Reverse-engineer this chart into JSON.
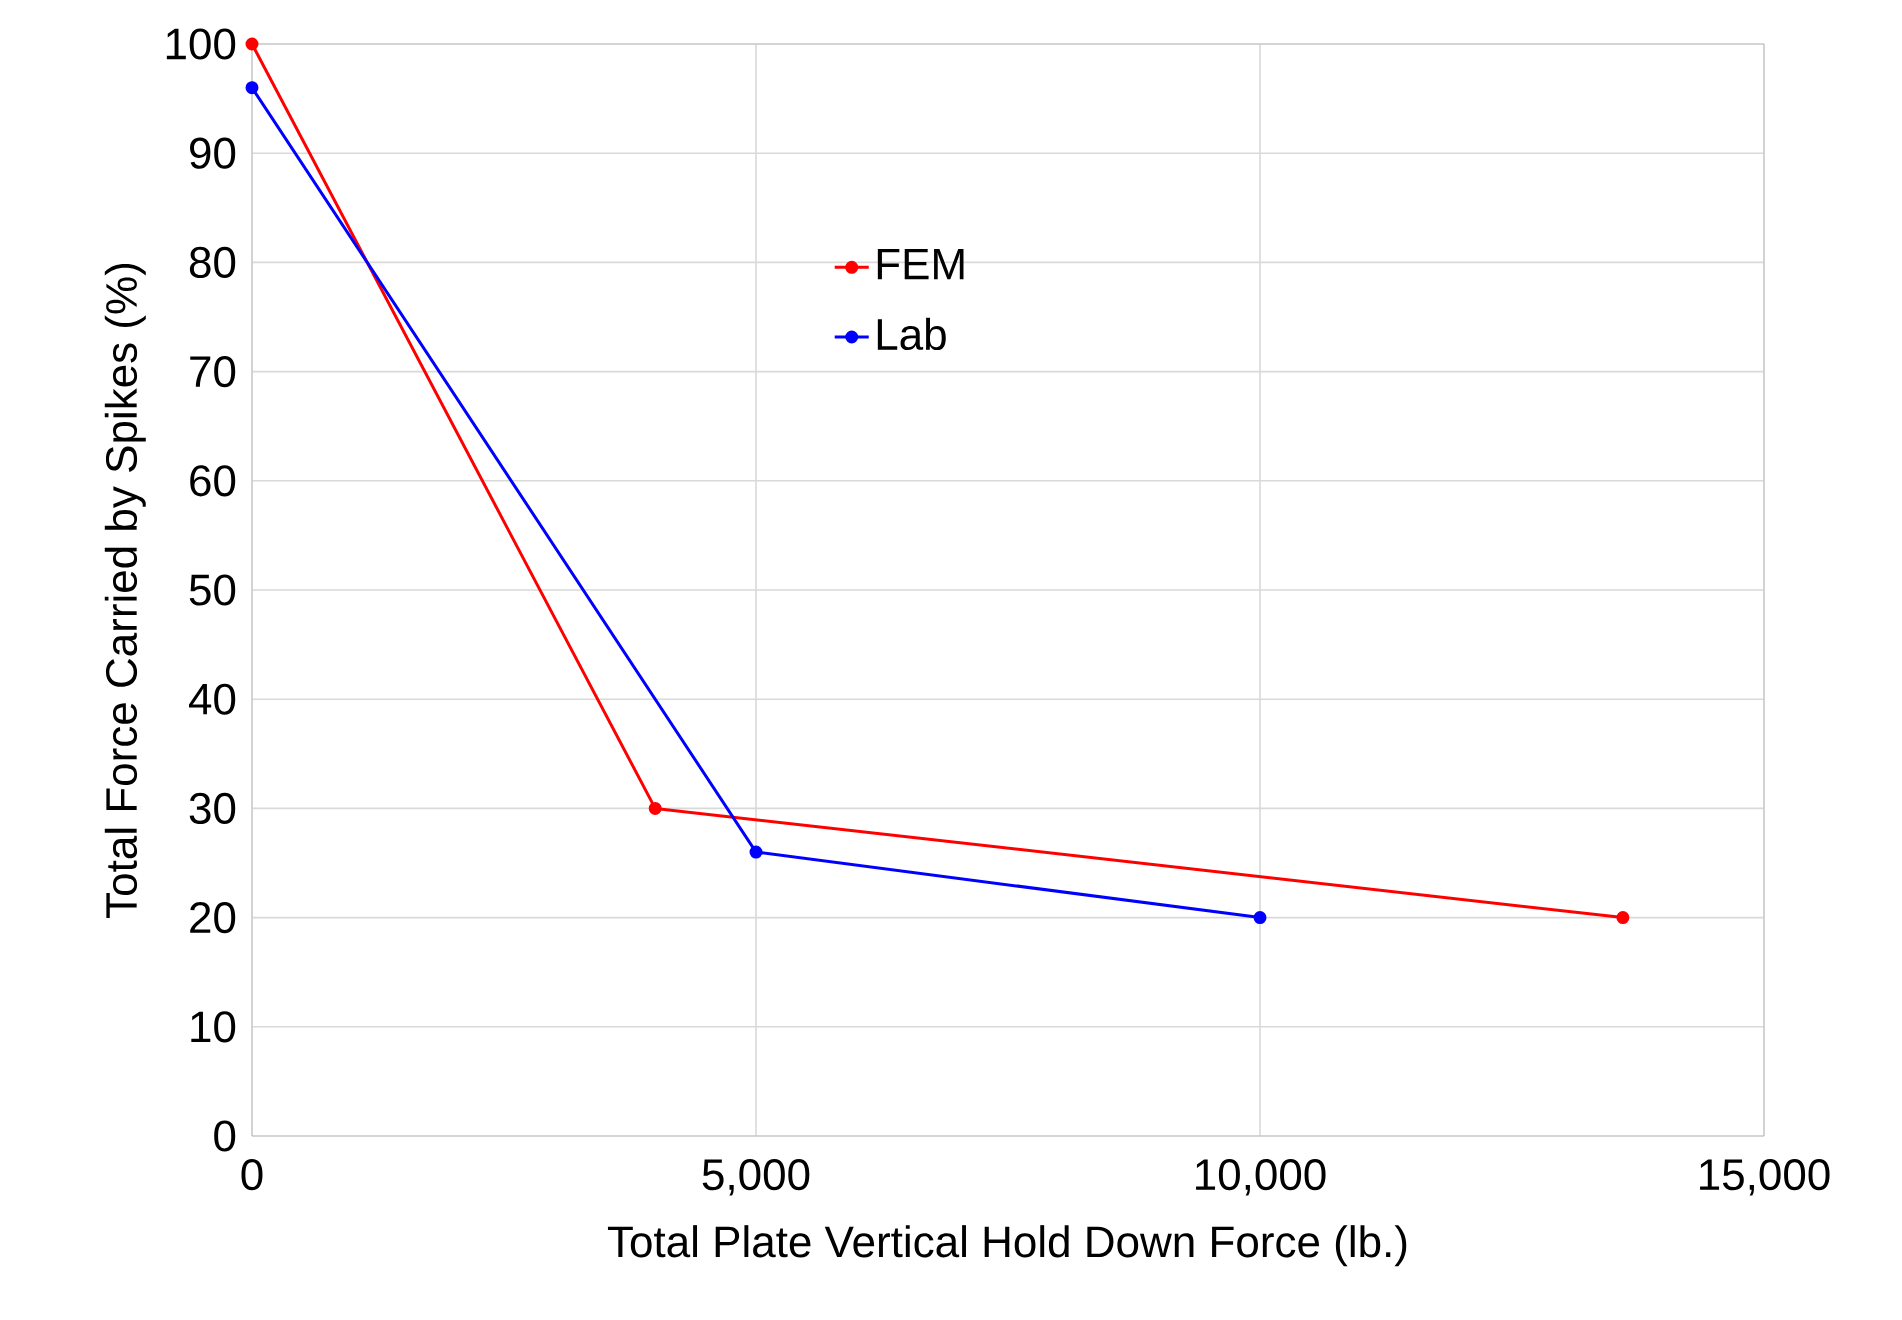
{
  "chart_data": {
    "type": "line",
    "xlabel": "Total Plate Vertical Hold Down Force (lb.)",
    "ylabel": "Total Force Carried by Spikes (%)",
    "series": [
      {
        "name": "FEM",
        "color": "#ff0000",
        "x": [
          0,
          4000,
          13600
        ],
        "values": [
          100,
          30,
          20
        ]
      },
      {
        "name": "Lab",
        "color": "#0000ff",
        "x": [
          0,
          5000,
          10000
        ],
        "values": [
          96,
          26,
          20
        ]
      }
    ],
    "xlim": [
      0,
      15000
    ],
    "ylim": [
      0,
      100
    ],
    "xticks": [
      0,
      {
        "value": 5000,
        "label": "5,000"
      },
      {
        "value": 10000,
        "label": "10,000"
      },
      {
        "value": 15000,
        "label": "15,000"
      }
    ],
    "yticks": [
      0,
      10,
      20,
      30,
      40,
      50,
      60,
      70,
      80,
      90,
      100
    ],
    "grid": true,
    "legend": "top",
    "marker": "circle",
    "line_style": "solid"
  }
}
